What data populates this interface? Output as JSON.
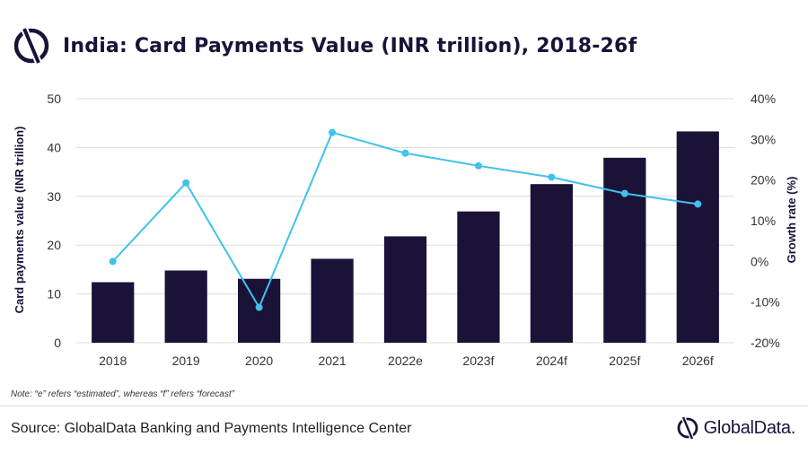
{
  "header": {
    "title": "India: Card Payments Value (INR trillion), 2018-26f",
    "logo_icon": "globaldata-logo-icon"
  },
  "note": "Note: “e” refers “estimated”, whereas “f” refers “forecast”",
  "source": "Source: GlobalData Banking and Payments Intelligence Center",
  "brand": {
    "text": "GlobalData.",
    "icon": "globaldata-logo-icon"
  },
  "colors": {
    "bar": "#1b1238",
    "line": "#3fc2ec",
    "grid": "#dcdcdc",
    "title": "#1b1238"
  },
  "chart_data": {
    "type": "bar",
    "title": "India: Card Payments Value (INR trillion), 2018-26f",
    "categories": [
      "2018",
      "2019",
      "2020",
      "2021",
      "2022e",
      "2023f",
      "2024f",
      "2025f",
      "2026f"
    ],
    "series": [
      {
        "type": "bar",
        "axis": "left",
        "values": [
          12.4,
          14.8,
          13.1,
          17.2,
          21.8,
          26.9,
          32.5,
          37.9,
          43.3
        ]
      },
      {
        "type": "line",
        "axis": "right",
        "values": [
          0,
          19.3,
          -11.3,
          31.7,
          26.6,
          23.5,
          20.7,
          16.7,
          14.1
        ]
      }
    ],
    "ylabel": "Card payments value (INR trillion)",
    "ylim": [
      0,
      50
    ],
    "yticks": [
      "0",
      "10",
      "20",
      "30",
      "40",
      "50"
    ],
    "y2label": "Growth rate (%)",
    "y2lim": [
      -20,
      40
    ],
    "y2ticks": [
      "-20%",
      "-10%",
      "0%",
      "10%",
      "20%",
      "30%",
      "40%"
    ],
    "grid": true
  }
}
